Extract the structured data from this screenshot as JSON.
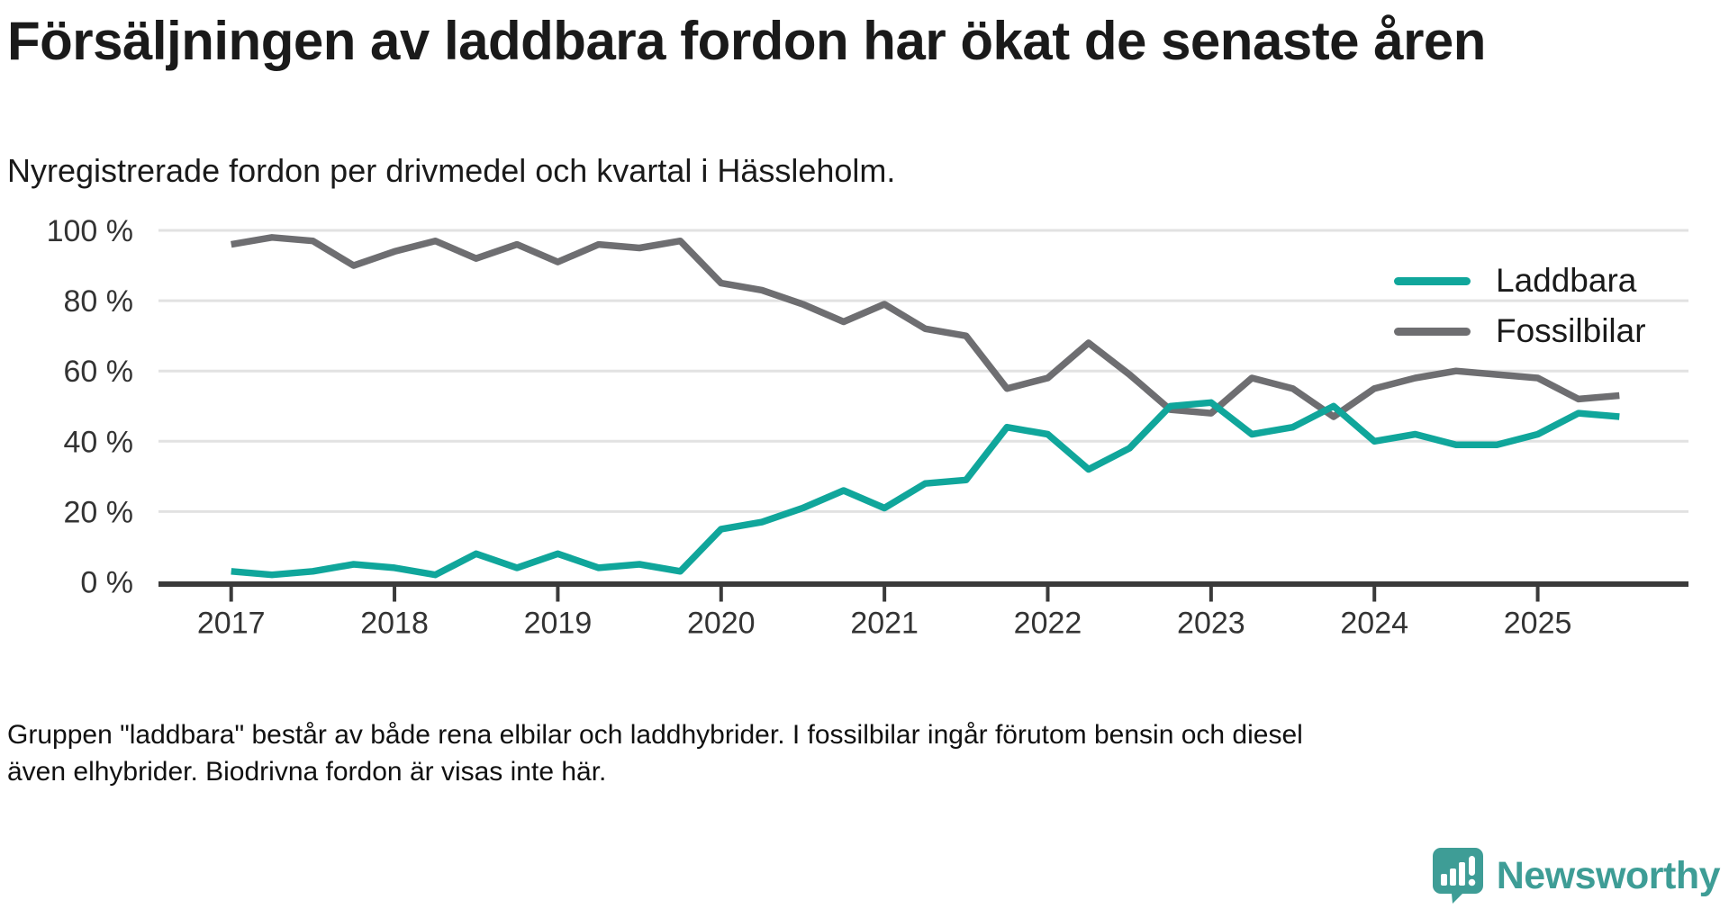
{
  "header": {
    "title": "Försäljningen av laddbara fordon har ökat de senaste åren",
    "subtitle": "Nyregistrerade fordon per drivmedel och kvartal i Hässleholm."
  },
  "chart_data": {
    "type": "line",
    "title": "Försäljningen av laddbara fordon har ökat de senaste åren",
    "subtitle": "Nyregistrerade fordon per drivmedel och kvartal i Hässleholm.",
    "unit": "%",
    "x_ticks": [
      "2017",
      "2018",
      "2019",
      "2020",
      "2021",
      "2022",
      "2023",
      "2024",
      "2025"
    ],
    "x_range": [
      "2017 Q1",
      "2025 Q3"
    ],
    "points_per_year": 4,
    "y_ticks": [
      "0 %",
      "20 %",
      "40 %",
      "60 %",
      "80 %",
      "100 %"
    ],
    "ylim": [
      0,
      100
    ],
    "grid": "horizontal",
    "legend_position": "top-right",
    "series": [
      {
        "name": "Laddbara",
        "color": "#10a69b",
        "values": [
          3,
          2,
          3,
          5,
          4,
          2,
          8,
          4,
          8,
          4,
          5,
          3,
          15,
          17,
          21,
          26,
          21,
          28,
          29,
          44,
          42,
          32,
          38,
          50,
          51,
          42,
          44,
          50,
          40,
          42,
          39,
          39,
          42,
          48,
          47
        ]
      },
      {
        "name": "Fossilbilar",
        "color": "#6e6e71",
        "values": [
          96,
          98,
          97,
          90,
          94,
          97,
          92,
          96,
          91,
          96,
          95,
          97,
          85,
          83,
          79,
          74,
          79,
          72,
          70,
          55,
          58,
          68,
          59,
          49,
          48,
          58,
          55,
          47,
          55,
          58,
          60,
          59,
          58,
          52,
          53
        ]
      }
    ],
    "colors": {
      "grid": "#e2e2e2",
      "axis": "#3a3a3a",
      "tick_label": "#333333"
    }
  },
  "legend": {
    "items": [
      {
        "label": "Laddbara",
        "color": "#10a69b"
      },
      {
        "label": "Fossilbilar",
        "color": "#6e6e71"
      }
    ]
  },
  "footer": {
    "note": "Gruppen \"laddbara\" består av både rena elbilar och laddhybrider. I fossilbilar ingår förutom bensin och diesel även elhybrider. Biodrivna fordon är visas inte här."
  },
  "logo": {
    "brand": "Newsworthy",
    "icon": "newsworthy-chart-bubble-icon",
    "color": "#3e9d96"
  }
}
